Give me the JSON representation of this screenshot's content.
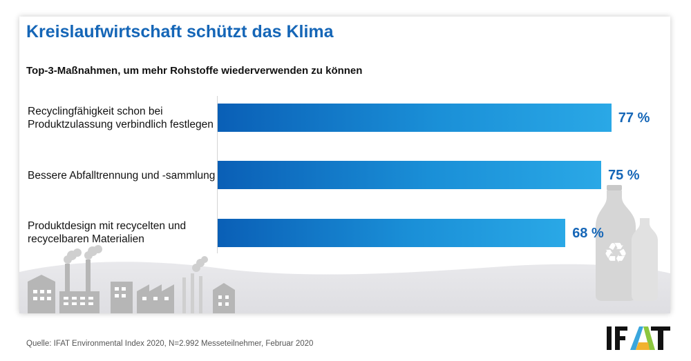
{
  "chart_data": {
    "type": "bar",
    "orientation": "horizontal",
    "title": "Kreislaufwirtschaft schützt das Klima",
    "subtitle": "Top-3-Maßnahmen, um mehr Rohstoffe wiederverwenden zu können",
    "categories": [
      [
        "Recyclingfähigkeit schon bei",
        "Produktzulassung verbindlich festlegen"
      ],
      [
        "Bessere Abfalltrennung und -sammlung"
      ],
      [
        "Produktdesign mit recycelten und",
        "recycelbaren Materialien"
      ]
    ],
    "values": [
      77,
      75,
      68
    ],
    "value_labels": [
      "77 %",
      "75 %",
      "68 %"
    ],
    "unit": "%",
    "xlim": [
      0,
      100
    ],
    "grid": false
  },
  "footer": {
    "source": "Quelle: IFAT Environmental Index 2020, N=2.992 Messeteilnehmer, Februar 2020",
    "logo_text": "IFAT"
  },
  "colors": {
    "accent": "#1566b7",
    "bar_start": "#0a5fb6",
    "bar_end": "#2aa8e6",
    "illustration": "#b9b9b9"
  },
  "icons": [
    "factory-icon",
    "bottle-icon",
    "recycle-icon",
    "ifat-logo-icon"
  ]
}
